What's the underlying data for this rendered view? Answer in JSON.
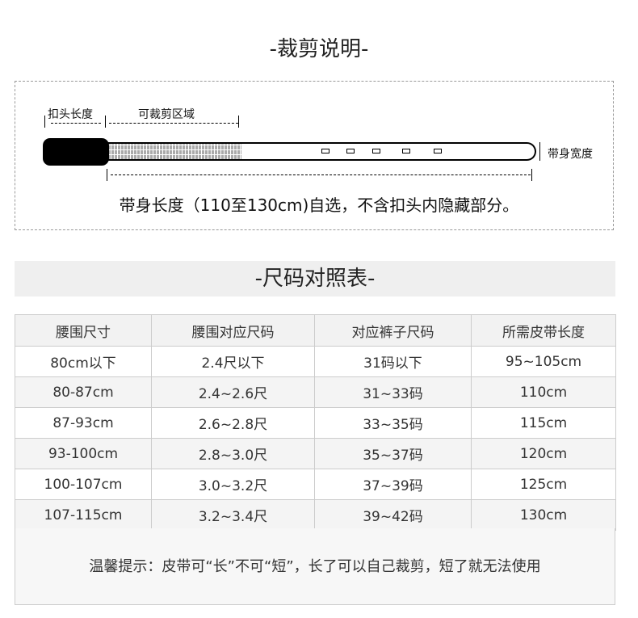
{
  "cutting": {
    "title": "-裁剪说明-",
    "buckle_length_label": "扣头长度",
    "cuttable_area_label": "可裁剪区域",
    "belt_width_label": "带身宽度",
    "description": "带身长度（110至130cm)自选，不含扣头内隐藏部分。"
  },
  "size_chart": {
    "title": "-尺码对照表-",
    "headers": [
      "腰围尺寸",
      "腰围对应尺码",
      "对应裤子尺码",
      "所需皮带长度"
    ],
    "rows": [
      [
        "80cm以下",
        "2.4尺以下",
        "31码以下",
        "95~105cm"
      ],
      [
        "80-87cm",
        "2.4~2.6尺",
        "31~33码",
        "110cm"
      ],
      [
        "87-93cm",
        "2.6~2.8尺",
        "33~35码",
        "115cm"
      ],
      [
        "93-100cm",
        "2.8~3.0尺",
        "35~37码",
        "120cm"
      ],
      [
        "100-107cm",
        "3.0~3.2尺",
        "37~39码",
        "125cm"
      ],
      [
        "107-115cm",
        "3.2~3.4尺",
        "39~42码",
        "130cm"
      ]
    ],
    "tip": "温馨提示：皮带可“长”不可“短”，长了可以自己裁剪，短了就无法使用"
  }
}
